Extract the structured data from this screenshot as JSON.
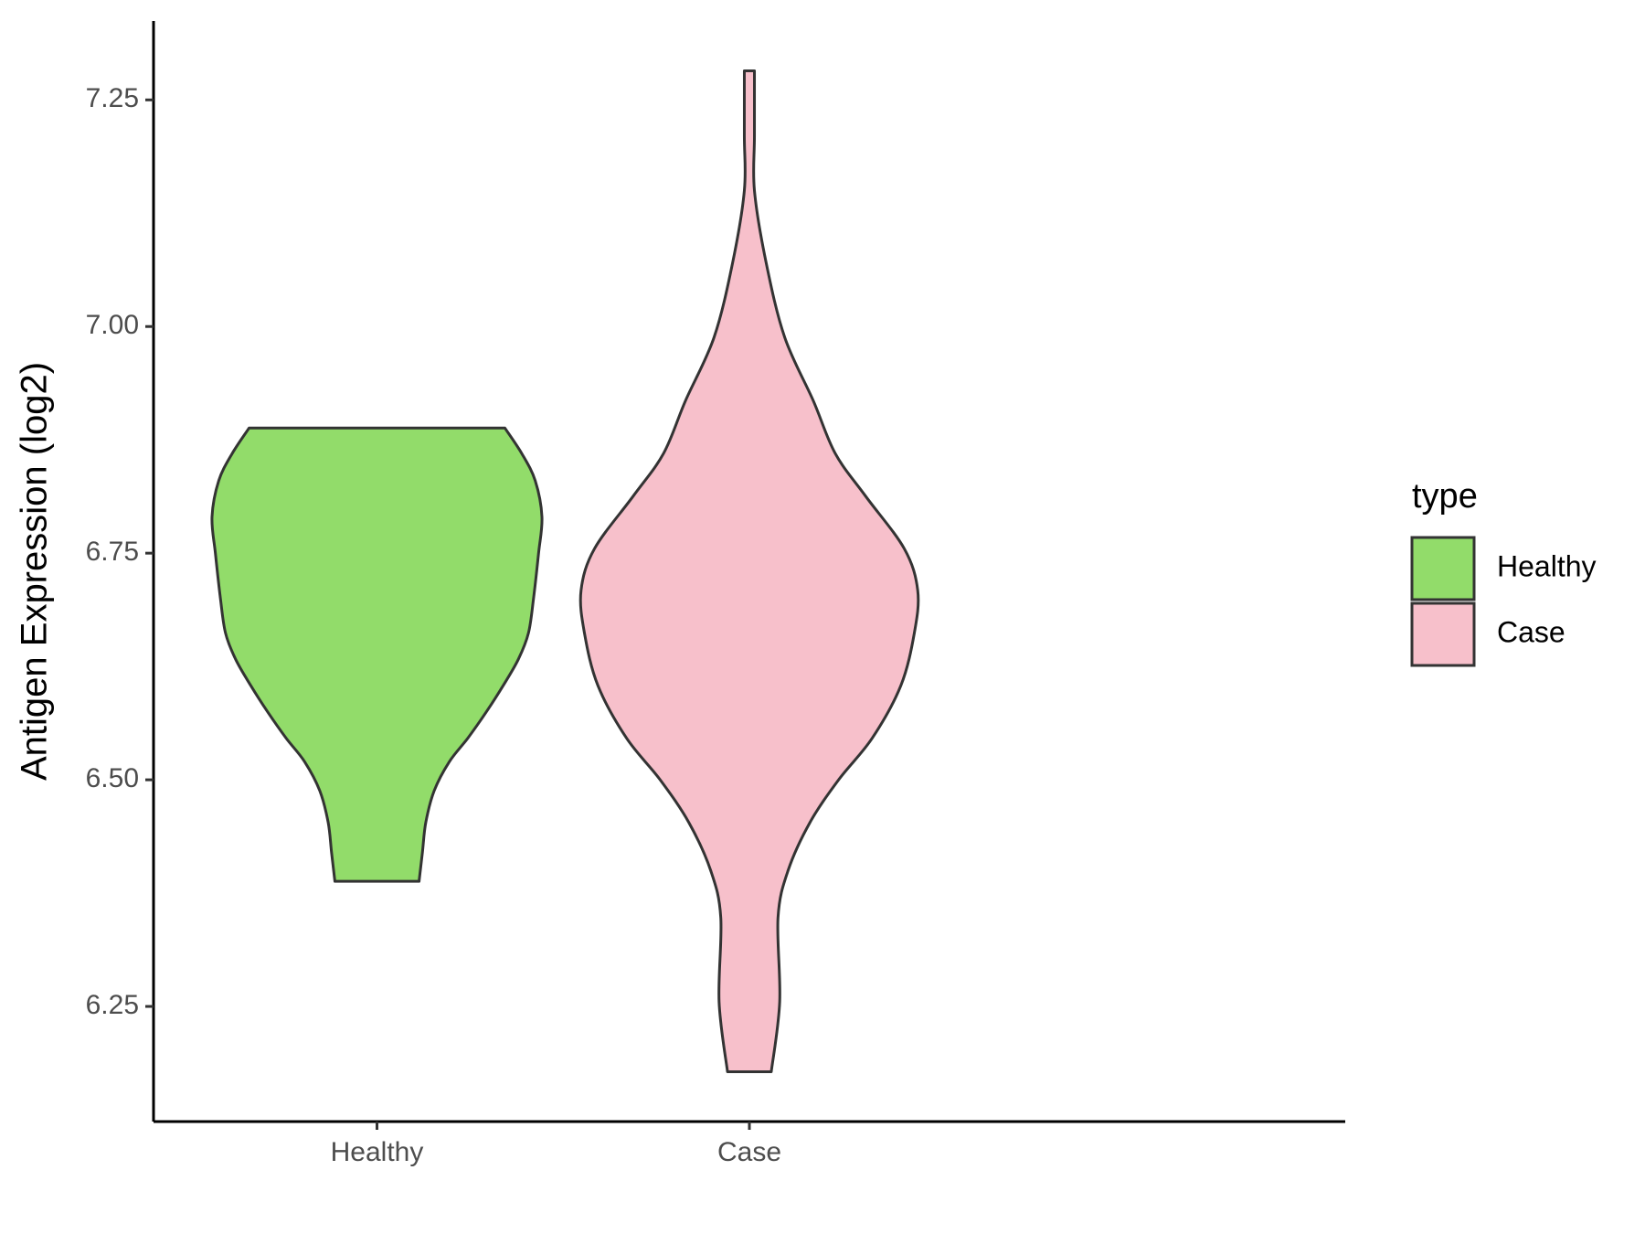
{
  "chart_data": {
    "type": "violin",
    "y_label": "Antigen Expression (log2)",
    "categories": [
      "Healthy",
      "Case"
    ],
    "legend_title": "type",
    "legend_position": "right",
    "series": [
      {
        "name": "Healthy",
        "color": "#92dc6a",
        "y": [
          6.388,
          6.42,
          6.453,
          6.488,
          6.52,
          6.546,
          6.575,
          6.604,
          6.633,
          6.662,
          6.7,
          6.75,
          6.79,
          6.83,
          6.86,
          6.888
        ],
        "density": [
          0.25,
          0.27,
          0.29,
          0.34,
          0.43,
          0.54,
          0.65,
          0.75,
          0.84,
          0.9,
          0.93,
          0.96,
          0.98,
          0.94,
          0.86,
          0.76
        ]
      },
      {
        "name": "Case",
        "color": "#f7c0cb",
        "y": [
          6.178,
          6.255,
          6.348,
          6.4,
          6.453,
          6.5,
          6.546,
          6.604,
          6.662,
          6.709,
          6.755,
          6.813,
          6.86,
          6.918,
          6.988,
          7.07,
          7.15,
          7.21,
          7.282
        ],
        "density": [
          0.13,
          0.18,
          0.17,
          0.23,
          0.36,
          0.53,
          0.73,
          0.9,
          0.98,
          1.0,
          0.92,
          0.69,
          0.51,
          0.38,
          0.21,
          0.1,
          0.03,
          0.03,
          0.03
        ]
      }
    ],
    "ylim": [
      6.123,
      7.337
    ],
    "yticks": [
      6.25,
      {
        "value": 6.5,
        "label": "6.50"
      },
      6.75,
      {
        "value": 7.0,
        "label": "7.00"
      },
      7.25
    ],
    "grid": false
  }
}
